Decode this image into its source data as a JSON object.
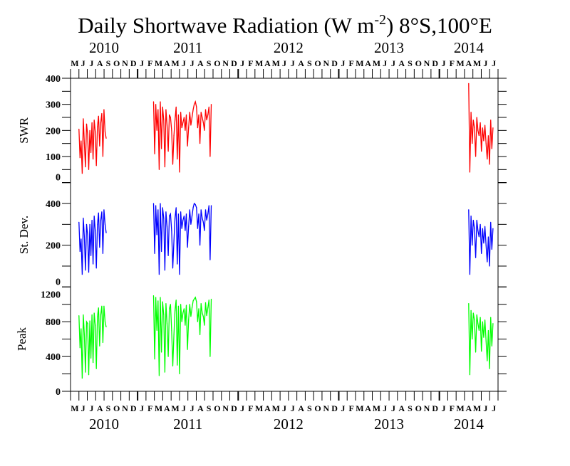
{
  "chart_data": {
    "type": "line",
    "title": "Daily Shortwave Radiation (W m",
    "title_sup": "-2",
    "title_tail": ") 8°S,100°E",
    "x_axis": {
      "start": "May 2010",
      "month_count": 51,
      "month_labels": [
        "M",
        "J",
        "J",
        "A",
        "S",
        "O",
        "N",
        "D",
        "J",
        "F",
        "M",
        "A",
        "M",
        "J",
        "J",
        "A",
        "S",
        "O",
        "N",
        "D",
        "J",
        "F",
        "M",
        "A",
        "M",
        "J",
        "J",
        "A",
        "S",
        "O",
        "N",
        "D",
        "J",
        "F",
        "M",
        "A",
        "M",
        "J",
        "J",
        "A",
        "S",
        "O",
        "N",
        "D",
        "J",
        "F",
        "M",
        "A",
        "M",
        "J",
        "J"
      ],
      "years": [
        {
          "label": "2010",
          "start_month_index": 0,
          "end_month_index": 8
        },
        {
          "label": "2011",
          "start_month_index": 8,
          "end_month_index": 20
        },
        {
          "label": "2012",
          "start_month_index": 20,
          "end_month_index": 32
        },
        {
          "label": "2013",
          "start_month_index": 32,
          "end_month_index": 44
        },
        {
          "label": "2014",
          "start_month_index": 44,
          "end_month_index": 51
        }
      ],
      "x_units": "months since 1 May 2010"
    },
    "panels": [
      {
        "ylabel": "SWR",
        "color": "#ff0000",
        "ylim": [
          0,
          400
        ],
        "ticks": [
          "0",
          "100",
          "200",
          "300",
          "400"
        ],
        "tick_values": [
          0,
          100,
          200,
          300,
          400
        ],
        "minor_step": 50,
        "segments": [
          {
            "x_start": 1.0,
            "step": 0.13,
            "values": [
              205,
              95,
              160,
              35,
              245,
              150,
              60,
              225,
              185,
              50,
              200,
              115,
              230,
              90,
              240,
              195,
              65,
              215,
              255,
              140,
              230,
              265,
              100,
              280,
              195,
              170
            ]
          },
          {
            "x_start": 9.9,
            "step": 0.135,
            "values": [
              310,
              110,
              300,
              200,
              280,
              50,
              310,
              130,
              290,
              240,
              60,
              280,
              220,
              120,
              260,
              250,
              200,
              70,
              180,
              240,
              290,
              90,
              260,
              40,
              270,
              210,
              230,
              250,
              200,
              260,
              140,
              210,
              270,
              220,
              250,
              280,
              300,
              310,
              290,
              210,
              260,
              150,
              270,
              250,
              230,
              200,
              280,
              240,
              260,
              290,
              100,
              300
            ]
          },
          {
            "x_start": 47.5,
            "step": 0.138,
            "values": [
              380,
              40,
              270,
              150,
              240,
              210,
              100,
              250,
              200,
              180,
              230,
              120,
              210,
              160,
              220,
              150,
              90,
              180,
              70,
              240,
              130,
              210
            ]
          }
        ]
      },
      {
        "ylabel": "St. Dev.",
        "color": "#0000ff",
        "ylim": [
          0,
          500
        ],
        "ticks": [
          "0",
          "200",
          "400"
        ],
        "tick_values": [
          0,
          200,
          400
        ],
        "minor_step": 100,
        "segments": [
          {
            "x_start": 1.0,
            "step": 0.13,
            "values": [
              310,
              170,
              230,
              60,
              330,
              240,
              80,
              300,
              250,
              70,
              300,
              150,
              320,
              110,
              340,
              270,
              90,
              300,
              355,
              190,
              320,
              360,
              160,
              370,
              300,
              260
            ]
          },
          {
            "x_start": 9.9,
            "step": 0.135,
            "values": [
              400,
              160,
              390,
              250,
              370,
              60,
              400,
              170,
              380,
              330,
              80,
              360,
              290,
              150,
              340,
              350,
              270,
              90,
              220,
              330,
              380,
              110,
              350,
              60,
              360,
              280,
              320,
              340,
              270,
              350,
              190,
              290,
              370,
              300,
              340,
              380,
              400,
              395,
              380,
              280,
              350,
              200,
              370,
              330,
              310,
              270,
              370,
              320,
              350,
              390,
              130,
              390
            ]
          },
          {
            "x_start": 47.5,
            "step": 0.138,
            "values": [
              370,
              60,
              340,
              200,
              320,
              280,
              140,
              320,
              270,
              240,
              300,
              160,
              280,
              210,
              290,
              200,
              120,
              240,
              100,
              310,
              180,
              280
            ]
          }
        ]
      },
      {
        "ylabel": "Peak",
        "color": "#00ff00",
        "ylim": [
          0,
          1200
        ],
        "ticks": [
          "0",
          "400",
          "800",
          "1200"
        ],
        "tick_values": [
          0,
          400,
          800,
          1200
        ],
        "minor_step": 200,
        "segments": [
          {
            "x_start": 1.0,
            "step": 0.13,
            "values": [
              870,
              500,
              720,
              150,
              880,
              650,
              220,
              800,
              780,
              190,
              810,
              380,
              880,
              330,
              900,
              760,
              260,
              860,
              960,
              520,
              880,
              980,
              560,
              980,
              800,
              740
            ]
          },
          {
            "x_start": 9.9,
            "step": 0.135,
            "values": [
              1100,
              370,
              1080,
              700,
              1040,
              180,
              1080,
              450,
              1030,
              880,
              220,
              1010,
              780,
              400,
              950,
              1000,
              700,
              290,
              650,
              930,
              1050,
              300,
              980,
              200,
              1000,
              800,
              900,
              950,
              760,
              990,
              480,
              820,
              1000,
              860,
              960,
              1040,
              1060,
              1080,
              1030,
              800,
              950,
              650,
              1010,
              900,
              860,
              760,
              1020,
              870,
              960,
              1050,
              400,
              1060
            ]
          },
          {
            "x_start": 47.5,
            "step": 0.138,
            "values": [
              1010,
              190,
              930,
              600,
              900,
              820,
              450,
              880,
              780,
              700,
              850,
              460,
              800,
              620,
              820,
              580,
              350,
              700,
              260,
              850,
              520,
              780
            ]
          }
        ]
      }
    ]
  }
}
